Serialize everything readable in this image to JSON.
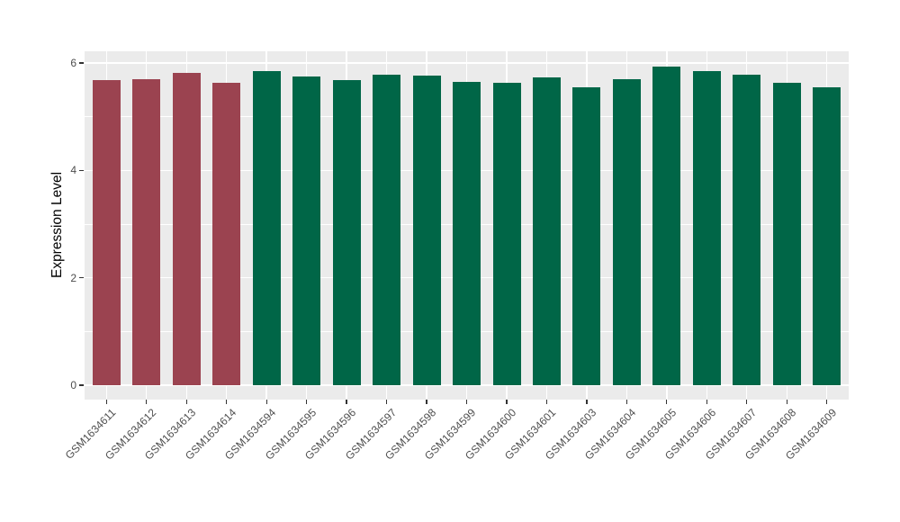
{
  "chart_data": {
    "type": "bar",
    "title": "",
    "xlabel": "",
    "ylabel": "Expression Level",
    "ylim": [
      0,
      6.22
    ],
    "yticks": [
      0,
      2,
      4,
      6
    ],
    "minor_gridlines": [
      1,
      3,
      5
    ],
    "grid": "on",
    "legend": "none",
    "plot_bg_color": "#EBEBEB",
    "grid_color": "#FFFFFF",
    "axis_text_color": "#4D4D4D",
    "axis_title_color": "#000000",
    "categories": [
      "GSM1634611",
      "GSM1634612",
      "GSM1634613",
      "GSM1634614",
      "GSM1634594",
      "GSM1634595",
      "GSM1634596",
      "GSM1634597",
      "GSM1634598",
      "GSM1634599",
      "GSM1634600",
      "GSM1634601",
      "GSM1634603",
      "GSM1634604",
      "GSM1634605",
      "GSM1634606",
      "GSM1634607",
      "GSM1634608",
      "GSM1634609"
    ],
    "series": [
      {
        "name": "Expression Level",
        "values": [
          5.69,
          5.7,
          5.82,
          5.64,
          5.85,
          5.75,
          5.69,
          5.79,
          5.77,
          5.65,
          5.64,
          5.73,
          5.55,
          5.7,
          5.93,
          5.85,
          5.79,
          5.64,
          5.54
        ]
      }
    ],
    "bar_groups": [
      "groupA",
      "groupA",
      "groupA",
      "groupA",
      "groupB",
      "groupB",
      "groupB",
      "groupB",
      "groupB",
      "groupB",
      "groupB",
      "groupB",
      "groupB",
      "groupB",
      "groupB",
      "groupB",
      "groupB",
      "groupB",
      "groupB"
    ],
    "group_colors": {
      "groupA": "#9B4350",
      "groupB": "#006647"
    }
  }
}
